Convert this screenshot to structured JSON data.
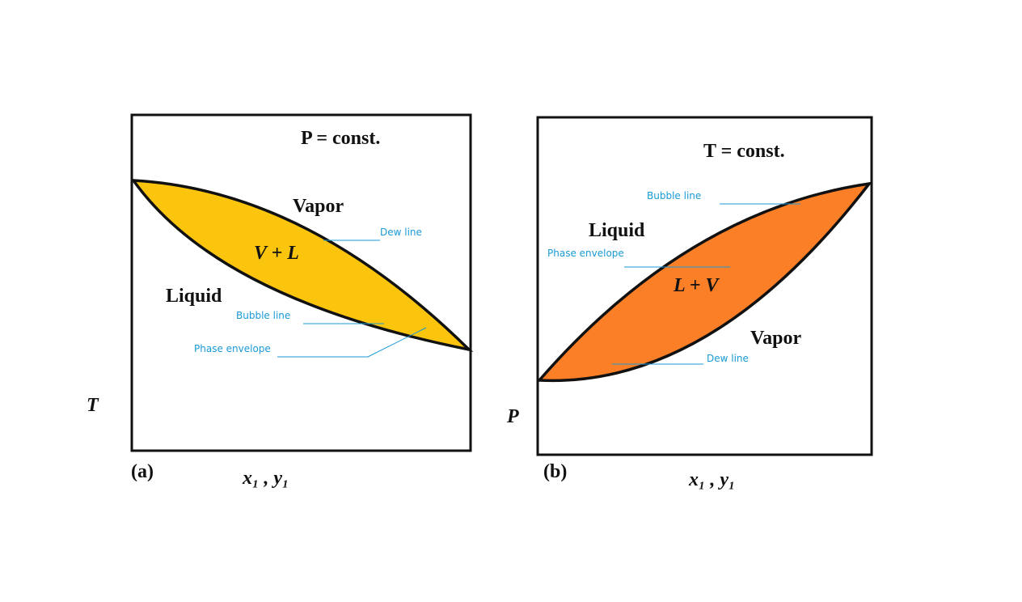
{
  "panel_a": {
    "condition": "P = const.",
    "vapor": "Vapor",
    "two_phase": "V + L",
    "liquid": "Liquid",
    "dew_line": "Dew line",
    "bubble_line": "Bubble line",
    "phase_envelope": "Phase envelope",
    "y_axis": "T",
    "tag": "(a)",
    "x_axis": "x₁ , y₁"
  },
  "panel_b": {
    "condition": "T = const.",
    "bubble_line": "Bubble line",
    "liquid": "Liquid",
    "phase_envelope": "Phase envelope",
    "two_phase": "L + V",
    "vapor": "Vapor",
    "dew_line": "Dew line",
    "y_axis": "P",
    "tag": "(b)",
    "x_axis": "x₁ , y₁"
  }
}
